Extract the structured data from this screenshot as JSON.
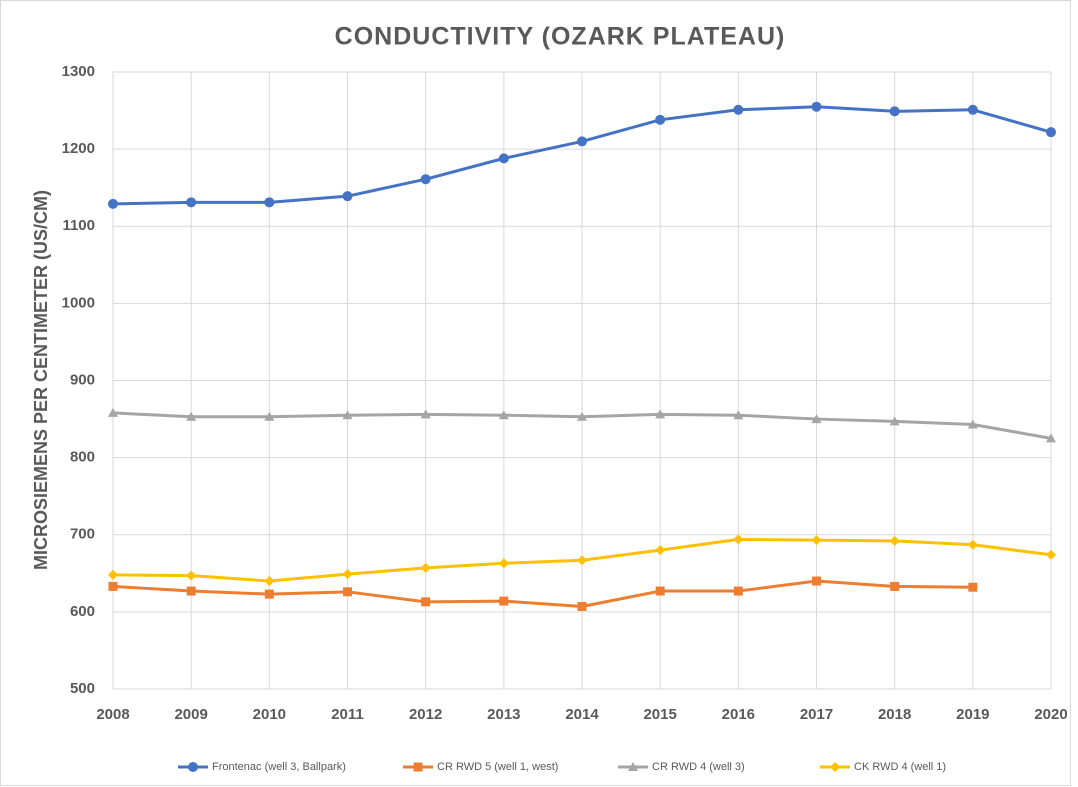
{
  "chart_data": {
    "type": "line",
    "title": "CONDUCTIVITY (OZARK PLATEAU)",
    "y_label": "MICROSIEMENS PER CENTIMETER (US/CM)",
    "x": [
      2008,
      2009,
      2010,
      2011,
      2012,
      2013,
      2014,
      2015,
      2016,
      2017,
      2018,
      2019,
      2020
    ],
    "xlim": [
      2008,
      2020
    ],
    "xticks": [
      2008,
      2009,
      2010,
      2011,
      2012,
      2013,
      2014,
      2015,
      2016,
      2017,
      2018,
      2019,
      2020
    ],
    "ylim": [
      500,
      1300
    ],
    "yticks": [
      500,
      600,
      700,
      800,
      900,
      1000,
      1100,
      1200,
      1300
    ],
    "grid": true,
    "legend": "bottom",
    "series": [
      {
        "name": "Frontenac (well 3, Ballpark)",
        "color": "#4472c4",
        "marker": "circle",
        "values": [
          1129,
          1131,
          1131,
          1139,
          1161,
          1188,
          1210,
          1238,
          1251,
          1255,
          1249,
          1251,
          1222
        ]
      },
      {
        "name": "CR RWD 5 (well 1, west)",
        "color": "#ed7d31",
        "marker": "square",
        "values": [
          633,
          627,
          623,
          626,
          613,
          614,
          607,
          627,
          627,
          640,
          633,
          632,
          null
        ]
      },
      {
        "name": "CR RWD 4 (well 3)",
        "color": "#a5a5a5",
        "marker": "triangle",
        "values": [
          858,
          853,
          853,
          855,
          856,
          855,
          853,
          856,
          855,
          850,
          847,
          843,
          825
        ]
      },
      {
        "name": "CK RWD 4 (well 1)",
        "color": "#ffc000",
        "marker": "diamond",
        "values": [
          648,
          647,
          640,
          649,
          657,
          663,
          667,
          680,
          694,
          693,
          692,
          687,
          674
        ]
      }
    ]
  }
}
